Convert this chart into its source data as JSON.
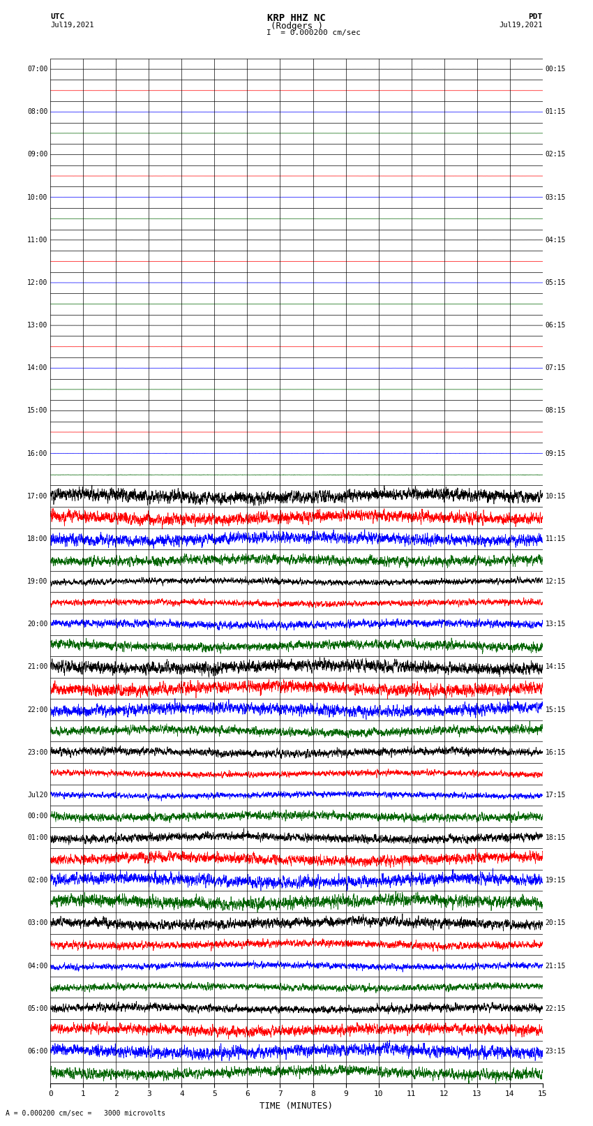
{
  "title_line1": "KRP HHZ NC",
  "title_line2": "(Rodgers )",
  "title_scale": "I = 0.000200 cm/sec",
  "label_left_top": "UTC",
  "label_left_date": "Jul19,2021",
  "label_right_top": "PDT",
  "label_right_date": "Jul19,2021",
  "xlabel": "TIME (MINUTES)",
  "bottom_label": "A = 0.000200 cm/sec =   3000 microvolts",
  "xlim": [
    0,
    15
  ],
  "xticks": [
    0,
    1,
    2,
    3,
    4,
    5,
    6,
    7,
    8,
    9,
    10,
    11,
    12,
    13,
    14,
    15
  ],
  "num_traces": 48,
  "bg_color": "#ffffff",
  "grid_color": "#000000",
  "left_times_utc": [
    "07:00",
    "",
    "08:00",
    "",
    "09:00",
    "",
    "10:00",
    "",
    "11:00",
    "",
    "12:00",
    "",
    "13:00",
    "",
    "14:00",
    "",
    "15:00",
    "",
    "16:00",
    "",
    "17:00",
    "",
    "18:00",
    "",
    "19:00",
    "",
    "20:00",
    "",
    "21:00",
    "",
    "22:00",
    "",
    "23:00",
    "",
    "Jul20",
    "00:00",
    "01:00",
    "",
    "02:00",
    "",
    "03:00",
    "",
    "04:00",
    "",
    "05:00",
    "",
    "06:00",
    ""
  ],
  "right_times_pdt": [
    "00:15",
    "",
    "01:15",
    "",
    "02:15",
    "",
    "03:15",
    "",
    "04:15",
    "",
    "05:15",
    "",
    "06:15",
    "",
    "07:15",
    "",
    "08:15",
    "",
    "09:15",
    "",
    "10:15",
    "",
    "11:15",
    "",
    "12:15",
    "",
    "13:15",
    "",
    "14:15",
    "",
    "15:15",
    "",
    "16:15",
    "",
    "17:15",
    "",
    "18:15",
    "",
    "19:15",
    "",
    "20:15",
    "",
    "21:15",
    "",
    "22:15",
    "",
    "23:15",
    ""
  ],
  "colors_cycle": [
    "#000000",
    "#ff0000",
    "#0000ff",
    "#006400"
  ],
  "transition_trace": 20,
  "quiet_amplitude": 0.004,
  "noisy_amplitude": 0.42,
  "samples_per_minute": 300,
  "minutes": 15
}
